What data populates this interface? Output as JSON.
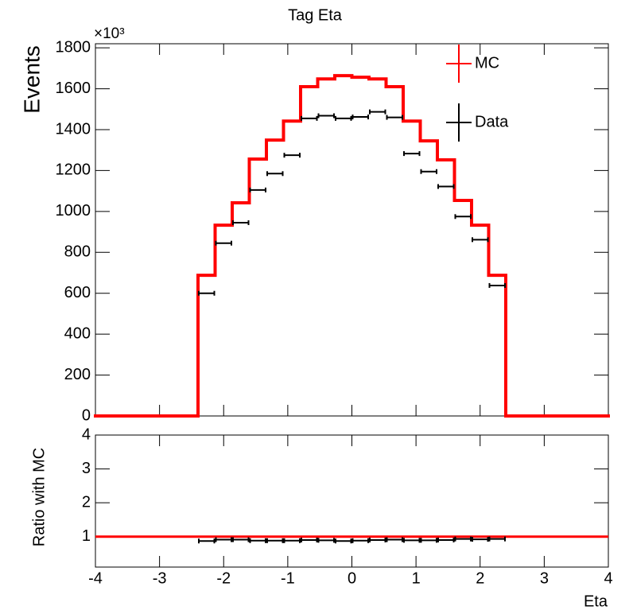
{
  "chart_data": [
    {
      "type": "histogram",
      "title": "Tag Eta",
      "y_label": "Events",
      "y_multiplier": "×10³",
      "bins": [
        -4,
        -3.7333,
        -3.4667,
        -3.2,
        -2.9333,
        -2.6667,
        -2.4,
        -2.1333,
        -1.8667,
        -1.6,
        -1.3333,
        -1.0667,
        -0.8,
        -0.5333,
        -0.2667,
        0,
        0.2667,
        0.5333,
        0.8,
        1.0667,
        1.3333,
        1.6,
        1.8667,
        2.1333,
        2.4,
        2.6667,
        2.9333,
        3.2,
        3.4667,
        3.7333,
        4
      ],
      "series": [
        {
          "name": "MC",
          "color": "#ff0000",
          "style": "step",
          "values": [
            0,
            0,
            0,
            0,
            0,
            0,
            688,
            933,
            1042,
            1256,
            1349,
            1442,
            1610,
            1648,
            1664,
            1656,
            1648,
            1610,
            1442,
            1345,
            1252,
            1054,
            933,
            688,
            0,
            0,
            0,
            0,
            0,
            0
          ]
        },
        {
          "name": "Data",
          "color": "#000000",
          "style": "points",
          "values": [
            null,
            null,
            null,
            null,
            null,
            null,
            600,
            845,
            945,
            1105,
            1185,
            1275,
            1455,
            1468,
            1455,
            1462,
            1487,
            1460,
            1283,
            1195,
            1122,
            975,
            862,
            638,
            null,
            null,
            null,
            null,
            null,
            null
          ]
        }
      ],
      "xlim": [
        -4,
        4
      ],
      "ylim": [
        0,
        1820
      ],
      "yticks": [
        0,
        200,
        400,
        600,
        800,
        1000,
        1200,
        1400,
        1600,
        1800
      ],
      "legend": "top-right"
    },
    {
      "type": "histogram",
      "y_label": "Ratio with MC",
      "x_label": "Eta",
      "reference_line": 1,
      "reference_color": "#ff0000",
      "series": [
        {
          "name": "Data",
          "color": "#000000",
          "style": "points",
          "values": [
            null,
            null,
            null,
            null,
            null,
            null,
            0.87,
            0.91,
            0.91,
            0.88,
            0.88,
            0.88,
            0.9,
            0.89,
            0.87,
            0.88,
            0.9,
            0.91,
            0.89,
            0.89,
            0.9,
            0.93,
            0.92,
            0.93,
            null,
            null,
            null,
            null,
            null,
            null
          ]
        }
      ],
      "xlim": [
        -4,
        4
      ],
      "ylim": [
        0.1,
        4
      ],
      "xticks": [
        -4,
        -3,
        -2,
        -1,
        0,
        1,
        2,
        3,
        4
      ],
      "yticks": [
        1,
        2,
        3,
        4
      ]
    }
  ]
}
